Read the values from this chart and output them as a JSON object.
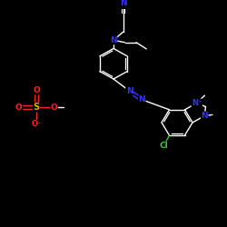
{
  "bg_color": "#000000",
  "bond_color": "#ffffff",
  "atom_colors": {
    "N": "#3333ff",
    "N+": "#3333ff",
    "O": "#ff2222",
    "S": "#ddaa00",
    "Cl": "#33cc33",
    "C": "#ffffff",
    "O-": "#ff2222"
  },
  "figsize": [
    2.5,
    2.5
  ],
  "dpi": 100,
  "xlim": [
    0,
    10
  ],
  "ylim": [
    0,
    10
  ]
}
